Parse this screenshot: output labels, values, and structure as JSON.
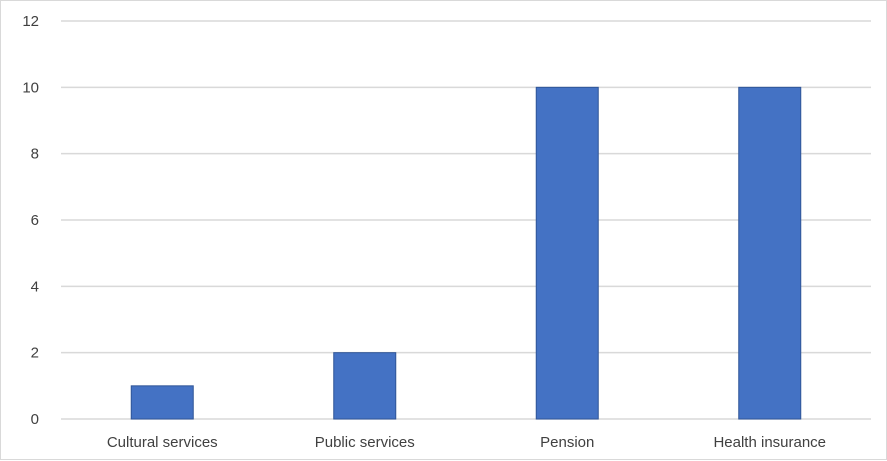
{
  "chart_data": {
    "type": "bar",
    "categories": [
      "Cultural services",
      "Public services",
      "Pension",
      "Health insurance"
    ],
    "values": [
      1,
      2,
      10,
      10
    ],
    "title": "",
    "xlabel": "",
    "ylabel": "",
    "ylim": [
      0,
      12
    ],
    "yticks": [
      "0",
      "2",
      "4",
      "6",
      "8",
      "10",
      "12"
    ],
    "grid": "horizontal",
    "legend": "none",
    "colors": {
      "bar": "#4472c4",
      "bar_edge": "#2f5597",
      "grid": "#d9d9d9",
      "text": "#404040"
    }
  }
}
